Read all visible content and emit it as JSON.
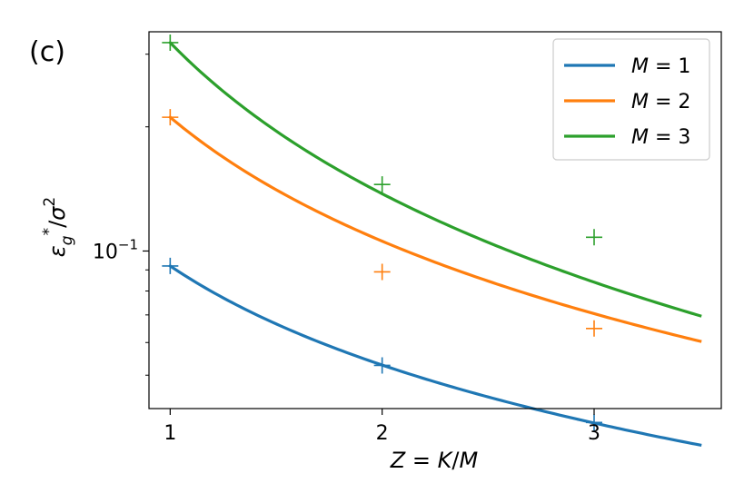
{
  "panel_label": "(c)",
  "chart_data": {
    "type": "line",
    "xlabel": "Z = K/M",
    "ylabel": "ε_g*/σ²",
    "xlim": [
      0.9,
      3.6
    ],
    "ylim": [
      0.0415,
      0.34
    ],
    "yscale": "log",
    "grid": false,
    "legend_position": "top-right",
    "x_ticks": [
      1,
      2,
      3
    ],
    "x_tick_labels": [
      "1",
      "2",
      "3"
    ],
    "y_major_tick": {
      "value": 0.1,
      "label_base": "10",
      "label_exp": "−1"
    },
    "y_minor_ticks": [
      0.05,
      0.06,
      0.07,
      0.08,
      0.09,
      0.2,
      0.3
    ],
    "series": [
      {
        "name": "M = 1",
        "color": "#1f77b4",
        "curve": {
          "a": 0.092,
          "p": 0.798,
          "x_range": [
            1,
            3.5
          ]
        },
        "markers": {
          "x": [
            1,
            2,
            3
          ],
          "y": [
            0.092,
            0.0528,
            0.0384
          ]
        }
      },
      {
        "name": "M = 2",
        "color": "#ff7f0e",
        "curve": {
          "a": 0.211,
          "p": 0.998,
          "x_range": [
            1,
            3.5
          ]
        },
        "markers": {
          "x": [
            1,
            2,
            3
          ],
          "y": [
            0.211,
            0.089,
            0.0649
          ]
        }
      },
      {
        "name": "M = 3",
        "color": "#2ca02c",
        "curve": {
          "a": 0.32,
          "p": 1.217,
          "x_range": [
            1,
            3.5
          ]
        },
        "markers": {
          "x": [
            1,
            2,
            3
          ],
          "y": [
            0.32,
            0.145,
            0.108
          ]
        }
      }
    ]
  }
}
